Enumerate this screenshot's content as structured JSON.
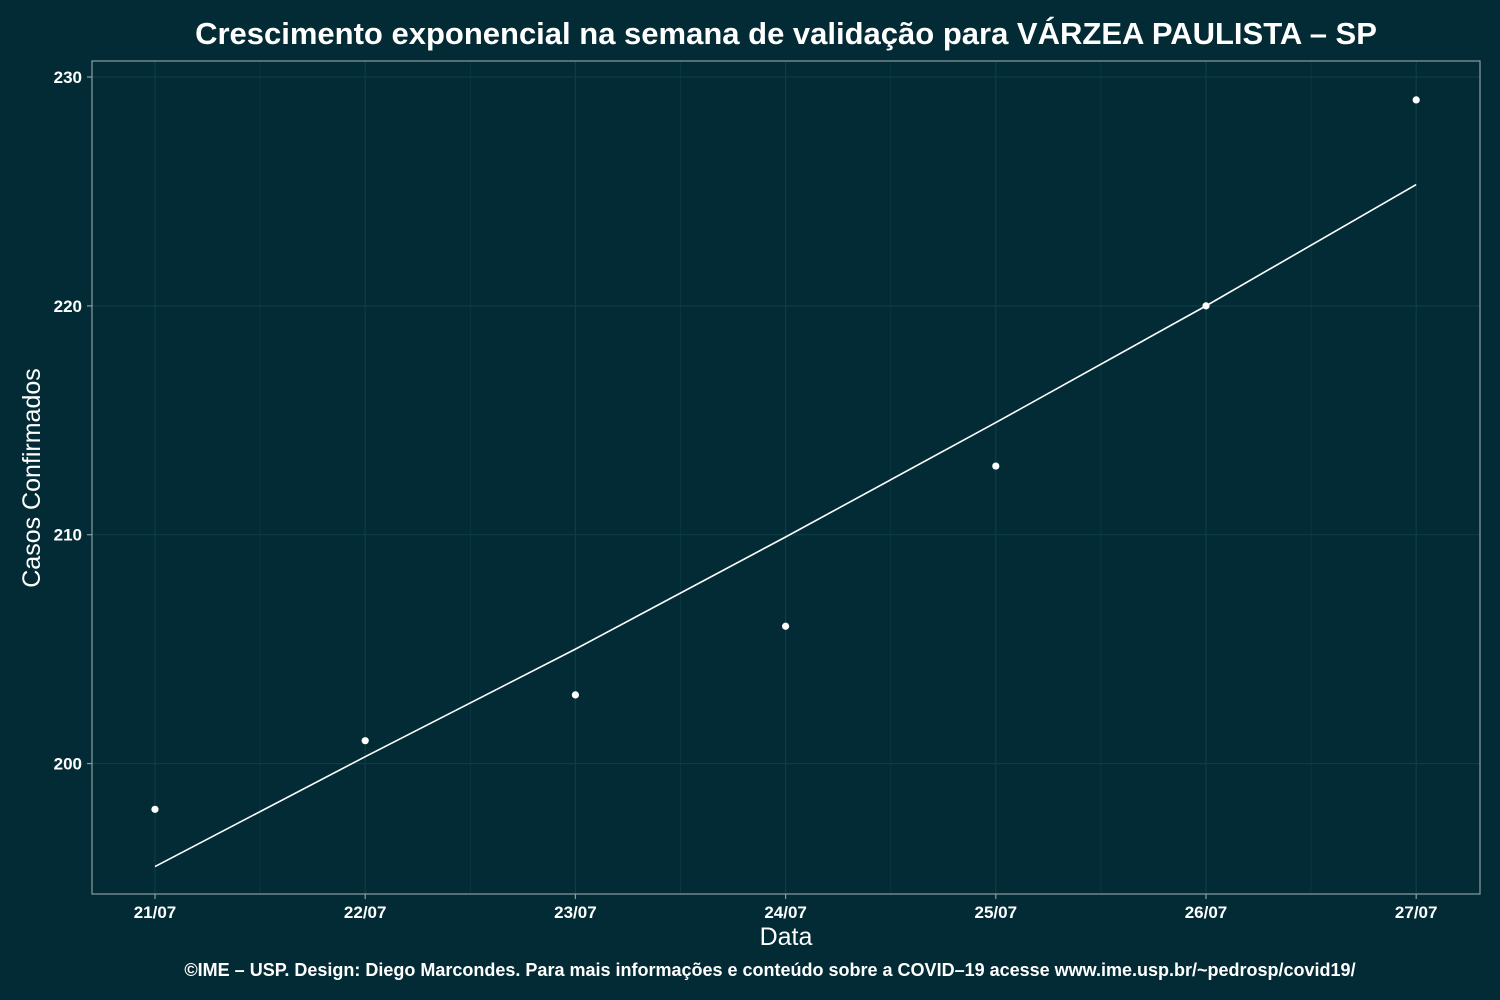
{
  "chart_data": {
    "type": "scatter",
    "title": "Crescimento exponencial na semana de validação para VÁRZEA PAULISTA – SP",
    "xlabel": "Data",
    "ylabel": "Casos Confirmados",
    "caption": "©IME – USP. Design: Diego Marcondes. Para mais informações e conteúdo sobre a COVID–19 acesse www.ime.usp.br/~pedrosp/covid19/",
    "categories": [
      "21/07",
      "22/07",
      "23/07",
      "24/07",
      "25/07",
      "26/07",
      "27/07"
    ],
    "series": [
      {
        "type": "scatter",
        "values": [
          198,
          201,
          203,
          206,
          213,
          220,
          229
        ]
      },
      {
        "type": "line",
        "values": [
          195.5,
          200.3,
          205.0,
          209.9,
          214.9,
          220.0,
          225.3
        ]
      }
    ],
    "ylim": [
      194.3,
      230.7
    ],
    "yticks": [
      200,
      210,
      220,
      230
    ],
    "grid": true
  }
}
